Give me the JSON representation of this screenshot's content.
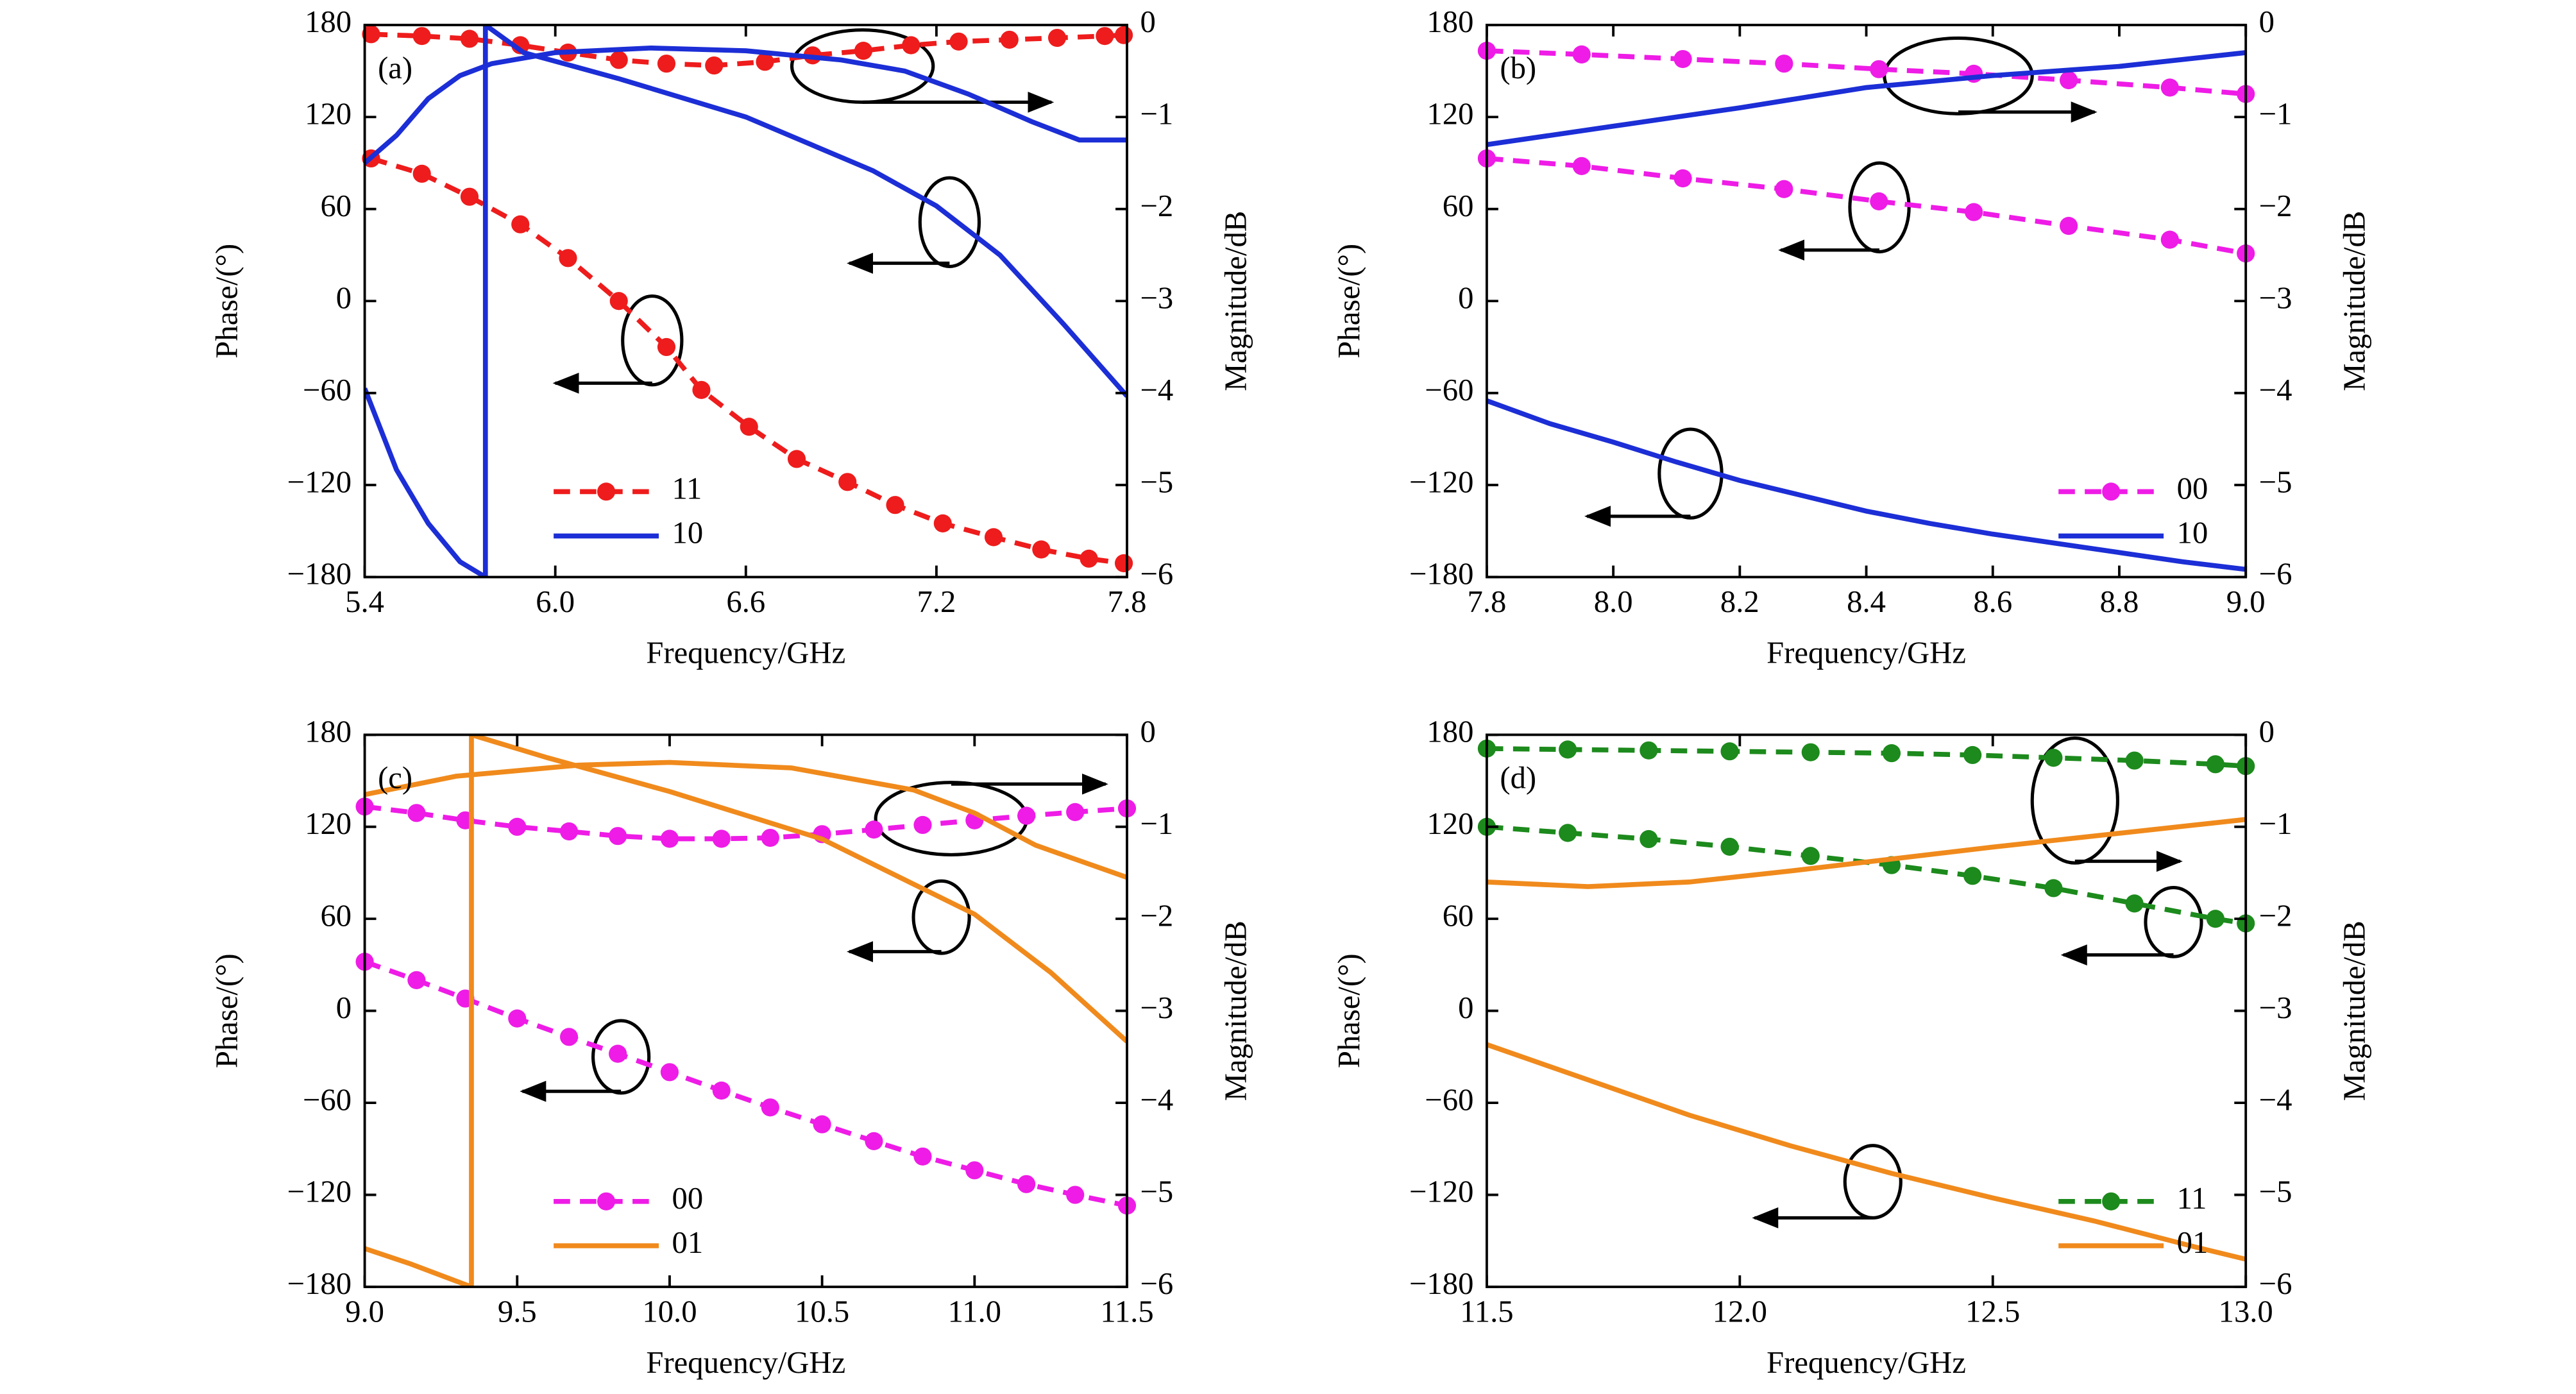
{
  "chart_data": [
    {
      "type": "line",
      "panel_label": "(a)",
      "xlabel": "Frequency/GHz",
      "ylabel": "Phase/(°)",
      "y2label": "Magnitude/dB",
      "legend": "lower left",
      "xlim": [
        5.4,
        7.8
      ],
      "xticks": [
        5.4,
        {
          "value": 6,
          "label": "6.0"
        },
        6.6,
        7.2,
        7.8
      ],
      "ylim": [
        -180,
        180
      ],
      "yticks": [
        {
          "value": -180,
          "label": "−180"
        },
        {
          "value": -120,
          "label": "−120"
        },
        {
          "value": -60,
          "label": "−60"
        },
        0,
        60,
        120,
        180
      ],
      "y2lim": [
        -6,
        0
      ],
      "y2ticks": [
        {
          "value": -6,
          "label": "−6"
        },
        {
          "value": -5,
          "label": "−5"
        },
        {
          "value": -4,
          "label": "−4"
        },
        {
          "value": -3,
          "label": "−3"
        },
        {
          "value": -2,
          "label": "−2"
        },
        {
          "value": -1,
          "label": "−1"
        },
        0
      ],
      "series": [
        {
          "name": "11",
          "color": "#ee1c1c",
          "style": "dashed",
          "markers": true,
          "axis": "y",
          "x": [
            5.42,
            5.58,
            5.73,
            5.89,
            6.04,
            6.2,
            6.35,
            6.46,
            6.61,
            6.76,
            6.92,
            7.07,
            7.22,
            7.38,
            7.53,
            7.68,
            7.79
          ],
          "values": [
            93,
            83,
            68,
            50,
            28,
            0,
            -30,
            -58,
            -82,
            -103,
            -118,
            -133,
            -145,
            -154,
            -162,
            -168,
            -171
          ]
        },
        {
          "color": "#ee1c1c",
          "style": "dashed",
          "markers": true,
          "axis": "y2",
          "x": [
            5.42,
            5.58,
            5.73,
            5.89,
            6.04,
            6.2,
            6.35,
            6.5,
            6.66,
            6.81,
            6.97,
            7.12,
            7.27,
            7.43,
            7.58,
            7.73,
            7.79
          ],
          "values": [
            -0.1,
            -0.12,
            -0.15,
            -0.22,
            -0.3,
            -0.38,
            -0.42,
            -0.44,
            -0.4,
            -0.33,
            -0.28,
            -0.22,
            -0.18,
            -0.16,
            -0.14,
            -0.12,
            -0.11
          ]
        },
        {
          "name": "10",
          "color": "#1c2ed6",
          "style": "solid",
          "markers": false,
          "axis": "y",
          "x": [
            5.4,
            5.5,
            5.6,
            5.7,
            5.78,
            5.78,
            5.9,
            6.2,
            6.6,
            7.0,
            7.2,
            7.4,
            7.6,
            7.8
          ],
          "values": [
            -57,
            -110,
            -145,
            -170,
            -180,
            180,
            162,
            145,
            120,
            85,
            62,
            30,
            -15,
            -62
          ]
        },
        {
          "color": "#1c2ed6",
          "style": "solid",
          "markers": false,
          "axis": "y2",
          "x": [
            5.4,
            5.5,
            5.6,
            5.7,
            5.8,
            6.0,
            6.3,
            6.6,
            6.9,
            7.1,
            7.3,
            7.5,
            7.65,
            7.8
          ],
          "values": [
            -1.5,
            -1.2,
            -0.8,
            -0.55,
            -0.42,
            -0.3,
            -0.25,
            -0.28,
            -0.38,
            -0.5,
            -0.75,
            -1.05,
            -1.25,
            -1.25
          ]
        }
      ]
    },
    {
      "type": "line",
      "panel_label": "(b)",
      "xlabel": "Frequency/GHz",
      "ylabel": "Phase/(°)",
      "y2label": "Magnitude/dB",
      "legend": "lower right",
      "xlim": [
        7.8,
        9.0
      ],
      "xticks": [
        7.8,
        {
          "value": 8,
          "label": "8.0"
        },
        8.2,
        8.4,
        8.6,
        8.8,
        {
          "value": 9,
          "label": "9.0"
        }
      ],
      "ylim": [
        -180,
        180
      ],
      "yticks": [
        {
          "value": -180,
          "label": "−180"
        },
        {
          "value": -120,
          "label": "−120"
        },
        {
          "value": -60,
          "label": "−60"
        },
        0,
        60,
        120,
        180
      ],
      "y2lim": [
        -6,
        0
      ],
      "y2ticks": [
        {
          "value": -6,
          "label": "−6"
        },
        {
          "value": -5,
          "label": "−5"
        },
        {
          "value": -4,
          "label": "−4"
        },
        {
          "value": -3,
          "label": "−3"
        },
        {
          "value": -2,
          "label": "−2"
        },
        {
          "value": -1,
          "label": "−1"
        },
        0
      ],
      "series": [
        {
          "name": "00",
          "color": "#ee1ce6",
          "style": "dashed",
          "markers": true,
          "axis": "y",
          "x": [
            7.8,
            7.95,
            8.11,
            8.27,
            8.42,
            8.57,
            8.72,
            8.88,
            9.0
          ],
          "values": [
            93,
            88,
            80,
            73,
            65,
            58,
            49,
            40,
            31
          ]
        },
        {
          "color": "#ee1ce6",
          "style": "dashed",
          "markers": true,
          "axis": "y2",
          "x": [
            7.8,
            7.95,
            8.11,
            8.27,
            8.42,
            8.57,
            8.72,
            8.88,
            9.0
          ],
          "values": [
            -0.28,
            -0.32,
            -0.37,
            -0.42,
            -0.48,
            -0.53,
            -0.6,
            -0.68,
            -0.75
          ]
        },
        {
          "name": "10",
          "color": "#1c2ed6",
          "style": "solid",
          "markers": false,
          "axis": "y",
          "x": [
            7.8,
            7.9,
            8.0,
            8.1,
            8.2,
            8.3,
            8.4,
            8.5,
            8.6,
            8.7,
            8.8,
            8.9,
            9.0
          ],
          "values": [
            -65,
            -80,
            -92,
            -105,
            -117,
            -127,
            -137,
            -145,
            -152,
            -158,
            -164,
            -170,
            -175
          ]
        },
        {
          "color": "#1c2ed6",
          "style": "solid",
          "markers": false,
          "axis": "y2",
          "x": [
            7.8,
            8.0,
            8.2,
            8.4,
            8.6,
            8.8,
            9.0
          ],
          "values": [
            -1.3,
            -1.1,
            -0.9,
            -0.68,
            -0.55,
            -0.45,
            -0.3
          ]
        }
      ]
    },
    {
      "type": "line",
      "panel_label": "(c)",
      "xlabel": "Frequency/GHz",
      "ylabel": "Phase/(°)",
      "y2label": "Magnitude/dB",
      "legend": "lower left",
      "xlim": [
        9.0,
        11.5
      ],
      "xticks": [
        {
          "value": 9,
          "label": "9.0"
        },
        9.5,
        {
          "value": 10,
          "label": "10.0"
        },
        10.5,
        {
          "value": 11,
          "label": "11.0"
        },
        11.5
      ],
      "ylim": [
        -180,
        180
      ],
      "yticks": [
        {
          "value": -180,
          "label": "−180"
        },
        {
          "value": -120,
          "label": "−120"
        },
        {
          "value": -60,
          "label": "−60"
        },
        0,
        60,
        120,
        180
      ],
      "y2lim": [
        -6,
        0
      ],
      "y2ticks": [
        {
          "value": -6,
          "label": "−6"
        },
        {
          "value": -5,
          "label": "−5"
        },
        {
          "value": -4,
          "label": "−4"
        },
        {
          "value": -3,
          "label": "−3"
        },
        {
          "value": -2,
          "label": "−2"
        },
        {
          "value": -1,
          "label": "−1"
        },
        0
      ],
      "series": [
        {
          "name": "00",
          "color": "#ee1ce6",
          "style": "dashed",
          "markers": true,
          "axis": "y",
          "x": [
            9.0,
            9.17,
            9.33,
            9.5,
            9.67,
            9.83,
            10.0,
            10.17,
            10.33,
            10.5,
            10.67,
            10.83,
            11.0,
            11.17,
            11.33,
            11.5
          ],
          "values": [
            32,
            20,
            8,
            -5,
            -17,
            -28,
            -40,
            -52,
            -63,
            -74,
            -85,
            -95,
            -104,
            -113,
            -120,
            -127
          ]
        },
        {
          "color": "#ee1ce6",
          "style": "dashed",
          "markers": true,
          "axis": "y2",
          "x": [
            9.0,
            9.17,
            9.33,
            9.5,
            9.67,
            9.83,
            10.0,
            10.17,
            10.33,
            10.5,
            10.67,
            10.83,
            11.0,
            11.17,
            11.33,
            11.5
          ],
          "values": [
            -0.78,
            -0.85,
            -0.93,
            -1.0,
            -1.05,
            -1.1,
            -1.13,
            -1.13,
            -1.12,
            -1.08,
            -1.03,
            -0.98,
            -0.93,
            -0.88,
            -0.84,
            -0.8
          ]
        },
        {
          "name": "01",
          "color": "#f08a1c",
          "style": "solid",
          "markers": false,
          "axis": "y",
          "x": [
            9.0,
            9.15,
            9.35,
            9.35,
            9.6,
            10.0,
            10.5,
            11.0,
            11.25,
            11.5
          ],
          "values": [
            -155,
            -165,
            -180,
            180,
            165,
            143,
            112,
            63,
            25,
            -20
          ]
        },
        {
          "color": "#f08a1c",
          "style": "solid",
          "markers": false,
          "axis": "y2",
          "x": [
            9.0,
            9.3,
            9.7,
            10.0,
            10.4,
            10.8,
            11.0,
            11.2,
            11.5
          ],
          "values": [
            -0.65,
            -0.45,
            -0.33,
            -0.3,
            -0.36,
            -0.6,
            -0.85,
            -1.2,
            -1.55
          ]
        }
      ]
    },
    {
      "type": "line",
      "panel_label": "(d)",
      "xlabel": "Frequency/GHz",
      "ylabel": "Phase/(°)",
      "y2label": "Magnitude/dB",
      "legend": "lower right",
      "xlim": [
        11.5,
        13.0
      ],
      "xticks": [
        11.5,
        {
          "value": 12,
          "label": "12.0"
        },
        12.5,
        {
          "value": 13,
          "label": "13.0"
        }
      ],
      "ylim": [
        -180,
        180
      ],
      "yticks": [
        {
          "value": -180,
          "label": "−180"
        },
        {
          "value": -120,
          "label": "−120"
        },
        {
          "value": -60,
          "label": "−60"
        },
        0,
        60,
        120,
        180
      ],
      "y2lim": [
        -6,
        0
      ],
      "y2ticks": [
        {
          "value": -6,
          "label": "−6"
        },
        {
          "value": -5,
          "label": "−5"
        },
        {
          "value": -4,
          "label": "−4"
        },
        {
          "value": -3,
          "label": "−3"
        },
        {
          "value": -2,
          "label": "−2"
        },
        {
          "value": -1,
          "label": "−1"
        },
        0
      ],
      "series": [
        {
          "name": "11",
          "color": "#1c8a1c",
          "style": "dashed",
          "markers": true,
          "axis": "y",
          "x": [
            11.5,
            11.66,
            11.82,
            11.98,
            12.14,
            12.3,
            12.46,
            12.62,
            12.78,
            12.94,
            13.0
          ],
          "values": [
            120,
            116,
            112,
            107,
            101,
            95,
            88,
            80,
            70,
            60,
            57
          ]
        },
        {
          "color": "#1c8a1c",
          "style": "dashed",
          "markers": true,
          "axis": "y2",
          "x": [
            11.5,
            11.66,
            11.82,
            11.98,
            12.14,
            12.3,
            12.46,
            12.62,
            12.78,
            12.94,
            13.0
          ],
          "values": [
            -0.15,
            -0.16,
            -0.17,
            -0.18,
            -0.19,
            -0.2,
            -0.22,
            -0.25,
            -0.28,
            -0.32,
            -0.34
          ]
        },
        {
          "name": "01",
          "color": "#f08a1c",
          "style": "solid",
          "markers": false,
          "axis": "y",
          "x": [
            11.5,
            11.7,
            11.9,
            12.1,
            12.3,
            12.5,
            12.7,
            12.9,
            13.0
          ],
          "values": [
            -22,
            -45,
            -68,
            -88,
            -106,
            -122,
            -137,
            -154,
            -162
          ]
        },
        {
          "color": "#f08a1c",
          "style": "solid",
          "markers": false,
          "axis": "y2",
          "x": [
            11.5,
            11.7,
            11.9,
            12.1,
            12.3,
            12.5,
            12.7,
            12.9,
            13.0
          ],
          "values": [
            -1.6,
            -1.65,
            -1.6,
            -1.48,
            -1.35,
            -1.22,
            -1.1,
            -0.98,
            -0.92
          ]
        }
      ]
    }
  ]
}
